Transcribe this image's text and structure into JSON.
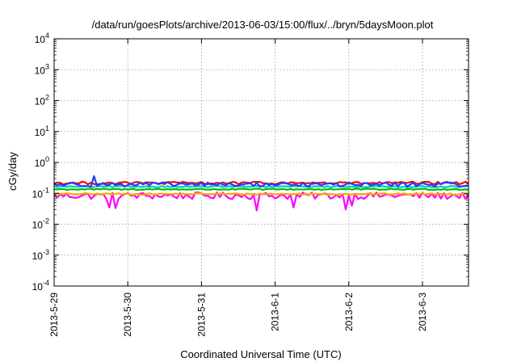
{
  "chart_data": {
    "type": "line",
    "title": "/data/run/goesPlots/archive/2013-06-03/15:00/flux/../bryn/5daysMoon.plot",
    "xlabel": "Coordinated Universal Time (UTC)",
    "ylabel": "cGy/day",
    "x_ticks": [
      "2013-5-29",
      "2013-5-30",
      "2013-5-31",
      "2013-6-1",
      "2013-6-2",
      "2013-6-3"
    ],
    "xlim": [
      "2013-05-29T00:00",
      "2013-06-03T15:00"
    ],
    "yscale": "log",
    "ylim": [
      0.0001,
      10000
    ],
    "y_ticks": [
      {
        "base": "10",
        "exp": "-4",
        "value": 0.0001
      },
      {
        "base": "10",
        "exp": "-3",
        "value": 0.001
      },
      {
        "base": "10",
        "exp": "-2",
        "value": 0.01
      },
      {
        "base": "10",
        "exp": "-1",
        "value": 0.1
      },
      {
        "base": "10",
        "exp": "0",
        "value": 1
      },
      {
        "base": "10",
        "exp": "1",
        "value": 10
      },
      {
        "base": "10",
        "exp": "2",
        "value": 100
      },
      {
        "base": "10",
        "exp": "3",
        "value": 1000
      },
      {
        "base": "10",
        "exp": "4",
        "value": 10000
      }
    ],
    "grid": true,
    "legend": "none",
    "sample_interval_hours": 1,
    "series": [
      {
        "color": "#ff00ff",
        "base_value": 0.085,
        "noise": 0.25,
        "dips": [
          {
            "x": "2013-05-29T18:00",
            "value": 0.035
          },
          {
            "x": "2013-05-29T20:00",
            "value": 0.033
          },
          {
            "x": "2013-05-31T18:00",
            "value": 0.028
          },
          {
            "x": "2013-06-01T06:00",
            "value": 0.035
          },
          {
            "x": "2013-06-01T23:00",
            "value": 0.03
          },
          {
            "x": "2013-06-02T01:00",
            "value": 0.04
          }
        ]
      },
      {
        "color": "#ffa500",
        "base_value": 0.095,
        "noise": 0.06,
        "dips": []
      },
      {
        "color": "#00c000",
        "base_value": 0.135,
        "noise": 0.05,
        "dips": []
      },
      {
        "color": "#00c8c8",
        "base_value": 0.165,
        "noise": 0.05,
        "dips": []
      },
      {
        "color": "#ff0000",
        "base_value": 0.215,
        "noise": 0.1,
        "dips": []
      },
      {
        "color": "#1f3fff",
        "base_value": 0.195,
        "noise": 0.16,
        "peaks": [
          {
            "x": "2013-05-29T13:00",
            "value": 0.36
          }
        ]
      }
    ]
  }
}
